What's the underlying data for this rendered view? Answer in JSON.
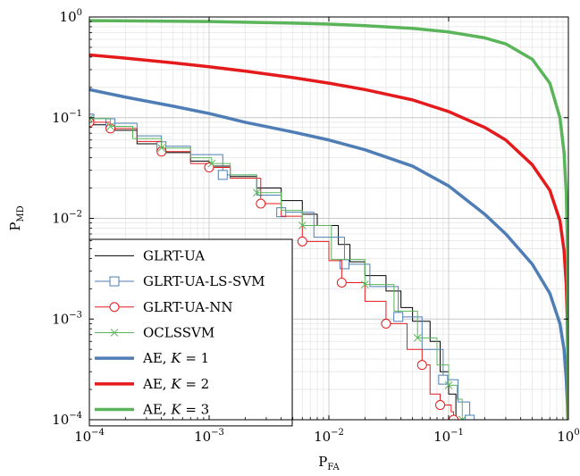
{
  "chart_data": {
    "type": "line",
    "xscale": "log",
    "yscale": "log",
    "xlim": [
      0.0001,
      1
    ],
    "ylim": [
      0.0001,
      1
    ],
    "grid": true,
    "minor_grid": true,
    "legend_position": "bottom-left",
    "xlabel": {
      "main": "P",
      "sub": "FA"
    },
    "ylabel": {
      "main": "P",
      "sub": "MD"
    },
    "x_ticks": [
      {
        "value": 0.0001,
        "base": "10",
        "exp": "−4"
      },
      {
        "value": 0.001,
        "base": "10",
        "exp": "−3"
      },
      {
        "value": 0.01,
        "base": "10",
        "exp": "−2"
      },
      {
        "value": 0.1,
        "base": "10",
        "exp": "−1"
      },
      {
        "value": 1,
        "base": "10",
        "exp": "0"
      }
    ],
    "y_ticks": [
      {
        "value": 0.0001,
        "base": "10",
        "exp": "−4"
      },
      {
        "value": 0.001,
        "base": "10",
        "exp": "−3"
      },
      {
        "value": 0.01,
        "base": "10",
        "exp": "−2"
      },
      {
        "value": 0.1,
        "base": "10",
        "exp": "−1"
      },
      {
        "value": 1,
        "base": "10",
        "exp": "0"
      }
    ],
    "series": [
      {
        "name": "GLRT-UA",
        "color": "#000000",
        "style": "thin",
        "marker": "none",
        "points": [
          [
            0.0001,
            0.085
          ],
          [
            0.00015,
            0.075
          ],
          [
            0.00025,
            0.055
          ],
          [
            0.0004,
            0.045
          ],
          [
            0.0007,
            0.037
          ],
          [
            0.001,
            0.033
          ],
          [
            0.0015,
            0.026
          ],
          [
            0.0025,
            0.02
          ],
          [
            0.004,
            0.015
          ],
          [
            0.006,
            0.011
          ],
          [
            0.008,
            0.0085
          ],
          [
            0.012,
            0.0055
          ],
          [
            0.015,
            0.0037
          ],
          [
            0.02,
            0.0027
          ],
          [
            0.03,
            0.0019
          ],
          [
            0.04,
            0.0013
          ],
          [
            0.05,
            0.00095
          ],
          [
            0.07,
            0.0006
          ],
          [
            0.085,
            0.0003
          ],
          [
            0.1,
            0.00018
          ],
          [
            0.115,
            0.0001
          ]
        ]
      },
      {
        "name": "GLRT-UA-LS-SVM",
        "color": "#4e7eb5",
        "style": "thin",
        "marker": "square",
        "points": [
          [
            0.0001,
            0.098
          ],
          [
            0.00015,
            0.088
          ],
          [
            0.00025,
            0.066
          ],
          [
            0.0004,
            0.052
          ],
          [
            0.0007,
            0.043
          ],
          [
            0.0013,
            0.027
          ],
          [
            0.0025,
            0.017
          ],
          [
            0.004,
            0.0115
          ],
          [
            0.0075,
            0.0065
          ],
          [
            0.0135,
            0.0035
          ],
          [
            0.022,
            0.0021
          ],
          [
            0.038,
            0.00105
          ],
          [
            0.06,
            0.0005
          ],
          [
            0.09,
            0.00025
          ],
          [
            0.12,
            0.00015
          ],
          [
            0.15,
            0.0001
          ],
          [
            0.17,
            0.0001
          ]
        ]
      },
      {
        "name": "GLRT-UA-NN",
        "color": "#e41a1c",
        "style": "thin",
        "marker": "circle",
        "points": [
          [
            0.0001,
            0.09
          ],
          [
            0.00015,
            0.078
          ],
          [
            0.00025,
            0.058
          ],
          [
            0.0004,
            0.046
          ],
          [
            0.0007,
            0.035
          ],
          [
            0.001,
            0.032
          ],
          [
            0.0015,
            0.025
          ],
          [
            0.0027,
            0.014
          ],
          [
            0.004,
            0.0105
          ],
          [
            0.006,
            0.0059
          ],
          [
            0.01,
            0.0038
          ],
          [
            0.0128,
            0.0023
          ],
          [
            0.02,
            0.0015
          ],
          [
            0.03,
            0.0009
          ],
          [
            0.045,
            0.0005
          ],
          [
            0.06,
            0.00035
          ],
          [
            0.07,
            0.00018
          ],
          [
            0.085,
            0.00014
          ],
          [
            0.105,
            0.00012
          ],
          [
            0.11,
            0.0001
          ]
        ]
      },
      {
        "name": "OCLSSVM",
        "color": "#5ab55a",
        "style": "thin",
        "marker": "cross",
        "points": [
          [
            0.0001,
            0.098
          ],
          [
            0.00015,
            0.082
          ],
          [
            0.00023,
            0.062
          ],
          [
            0.0004,
            0.05
          ],
          [
            0.0007,
            0.04
          ],
          [
            0.00105,
            0.035
          ],
          [
            0.0015,
            0.027
          ],
          [
            0.0025,
            0.018
          ],
          [
            0.004,
            0.012
          ],
          [
            0.006,
            0.0085
          ],
          [
            0.0105,
            0.0039
          ],
          [
            0.02,
            0.0022
          ],
          [
            0.035,
            0.0012
          ],
          [
            0.055,
            0.00065
          ],
          [
            0.08,
            0.00035
          ],
          [
            0.1,
            0.00022
          ],
          [
            0.118,
            0.00016
          ],
          [
            0.13,
            0.0001
          ]
        ]
      },
      {
        "name": "AE, K = 1",
        "color": "#4e7eb5",
        "style": "thick",
        "marker": "none",
        "points": [
          [
            0.0001,
            0.19
          ],
          [
            0.0002,
            0.16
          ],
          [
            0.0005,
            0.13
          ],
          [
            0.001,
            0.11
          ],
          [
            0.002,
            0.09
          ],
          [
            0.005,
            0.072
          ],
          [
            0.01,
            0.06
          ],
          [
            0.02,
            0.048
          ],
          [
            0.05,
            0.033
          ],
          [
            0.1,
            0.021
          ],
          [
            0.2,
            0.011
          ],
          [
            0.3,
            0.007
          ],
          [
            0.5,
            0.0035
          ],
          [
            0.7,
            0.0018
          ],
          [
            0.85,
            0.0009
          ],
          [
            0.92,
            0.0005
          ],
          [
            0.96,
            0.00025
          ],
          [
            0.98,
            0.00015
          ],
          [
            0.99,
            0.0001
          ]
        ]
      },
      {
        "name": "AE, K = 2",
        "color": "#e41a1c",
        "style": "thick",
        "marker": "none",
        "points": [
          [
            0.0001,
            0.42
          ],
          [
            0.0002,
            0.39
          ],
          [
            0.0005,
            0.35
          ],
          [
            0.001,
            0.32
          ],
          [
            0.002,
            0.29
          ],
          [
            0.005,
            0.25
          ],
          [
            0.01,
            0.22
          ],
          [
            0.02,
            0.19
          ],
          [
            0.05,
            0.15
          ],
          [
            0.1,
            0.115
          ],
          [
            0.2,
            0.08
          ],
          [
            0.3,
            0.06
          ],
          [
            0.5,
            0.034
          ],
          [
            0.7,
            0.019
          ],
          [
            0.85,
            0.0095
          ],
          [
            0.92,
            0.0048
          ],
          [
            0.96,
            0.0022
          ],
          [
            0.98,
            0.001
          ],
          [
            0.99,
            0.0004
          ],
          [
            0.997,
            0.0001
          ]
        ]
      },
      {
        "name": "AE, K = 3",
        "color": "#5ab55a",
        "style": "thick",
        "marker": "none",
        "points": [
          [
            0.0001,
            0.92
          ],
          [
            0.001,
            0.9
          ],
          [
            0.005,
            0.87
          ],
          [
            0.01,
            0.85
          ],
          [
            0.02,
            0.82
          ],
          [
            0.05,
            0.77
          ],
          [
            0.1,
            0.71
          ],
          [
            0.2,
            0.62
          ],
          [
            0.3,
            0.54
          ],
          [
            0.5,
            0.38
          ],
          [
            0.7,
            0.22
          ],
          [
            0.85,
            0.1
          ],
          [
            0.92,
            0.045
          ],
          [
            0.96,
            0.018
          ],
          [
            0.98,
            0.006
          ],
          [
            0.99,
            0.002
          ],
          [
            0.996,
            0.0005
          ],
          [
            0.999,
            0.0001
          ]
        ]
      }
    ],
    "legend": [
      {
        "label": "GLRT-UA",
        "series_index": 0
      },
      {
        "label": "GLRT-UA-LS-SVM",
        "series_index": 1
      },
      {
        "label": "GLRT-UA-NN",
        "series_index": 2
      },
      {
        "label": "OCLSSVM",
        "series_index": 3
      },
      {
        "label_prefix": "AE, ",
        "label_var": "K",
        "label_suffix": " = 1",
        "series_index": 4
      },
      {
        "label_prefix": "AE, ",
        "label_var": "K",
        "label_suffix": " = 2",
        "series_index": 5
      },
      {
        "label_prefix": "AE, ",
        "label_var": "K",
        "label_suffix": " = 3",
        "series_index": 6
      }
    ]
  }
}
